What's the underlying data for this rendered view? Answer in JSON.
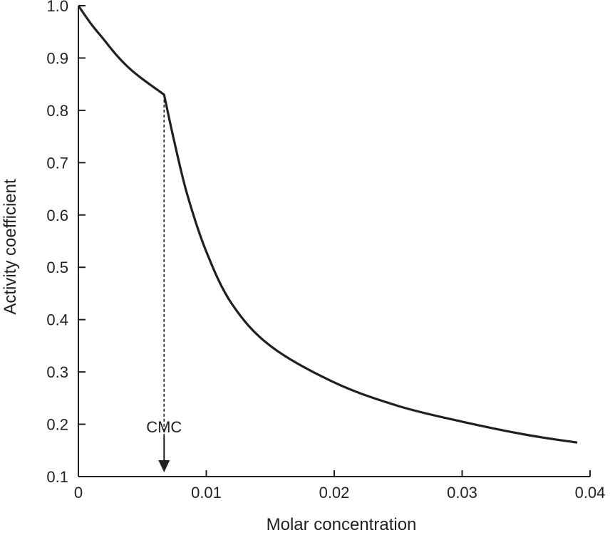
{
  "chart_data": {
    "type": "line",
    "xlabel": "Molar concentration",
    "ylabel": "Activity coefficient",
    "xlim": [
      0,
      0.04
    ],
    "ylim": [
      0.1,
      1.0
    ],
    "x_ticks": [
      "0",
      "0.01",
      "0.02",
      "0.03",
      "0.04"
    ],
    "x_tick_values": [
      0,
      0.01,
      0.02,
      0.03,
      0.04
    ],
    "y_ticks": [
      "0.1",
      "0.2",
      "0.3",
      "0.4",
      "0.5",
      "0.6",
      "0.7",
      "0.8",
      "0.9",
      "1.0"
    ],
    "y_tick_values": [
      0.1,
      0.2,
      0.3,
      0.4,
      0.5,
      0.6,
      0.7,
      0.8,
      0.9,
      1.0
    ],
    "grid": false,
    "series": [
      {
        "x": [
          0,
          0.001,
          0.002,
          0.003,
          0.004,
          0.005,
          0.0067,
          0.0075,
          0.0085,
          0.01,
          0.012,
          0.015,
          0.02,
          0.025,
          0.03,
          0.035,
          0.039
        ],
        "y": [
          1.0,
          0.965,
          0.935,
          0.905,
          0.88,
          0.86,
          0.83,
          0.74,
          0.64,
          0.53,
          0.43,
          0.35,
          0.28,
          0.235,
          0.205,
          0.18,
          0.165
        ]
      }
    ],
    "annotations": [
      {
        "text": "CMC",
        "x": 0.0067,
        "y_from": 0.83,
        "y_to": 0.1
      }
    ],
    "colors": {
      "ink": "#231f20"
    }
  }
}
